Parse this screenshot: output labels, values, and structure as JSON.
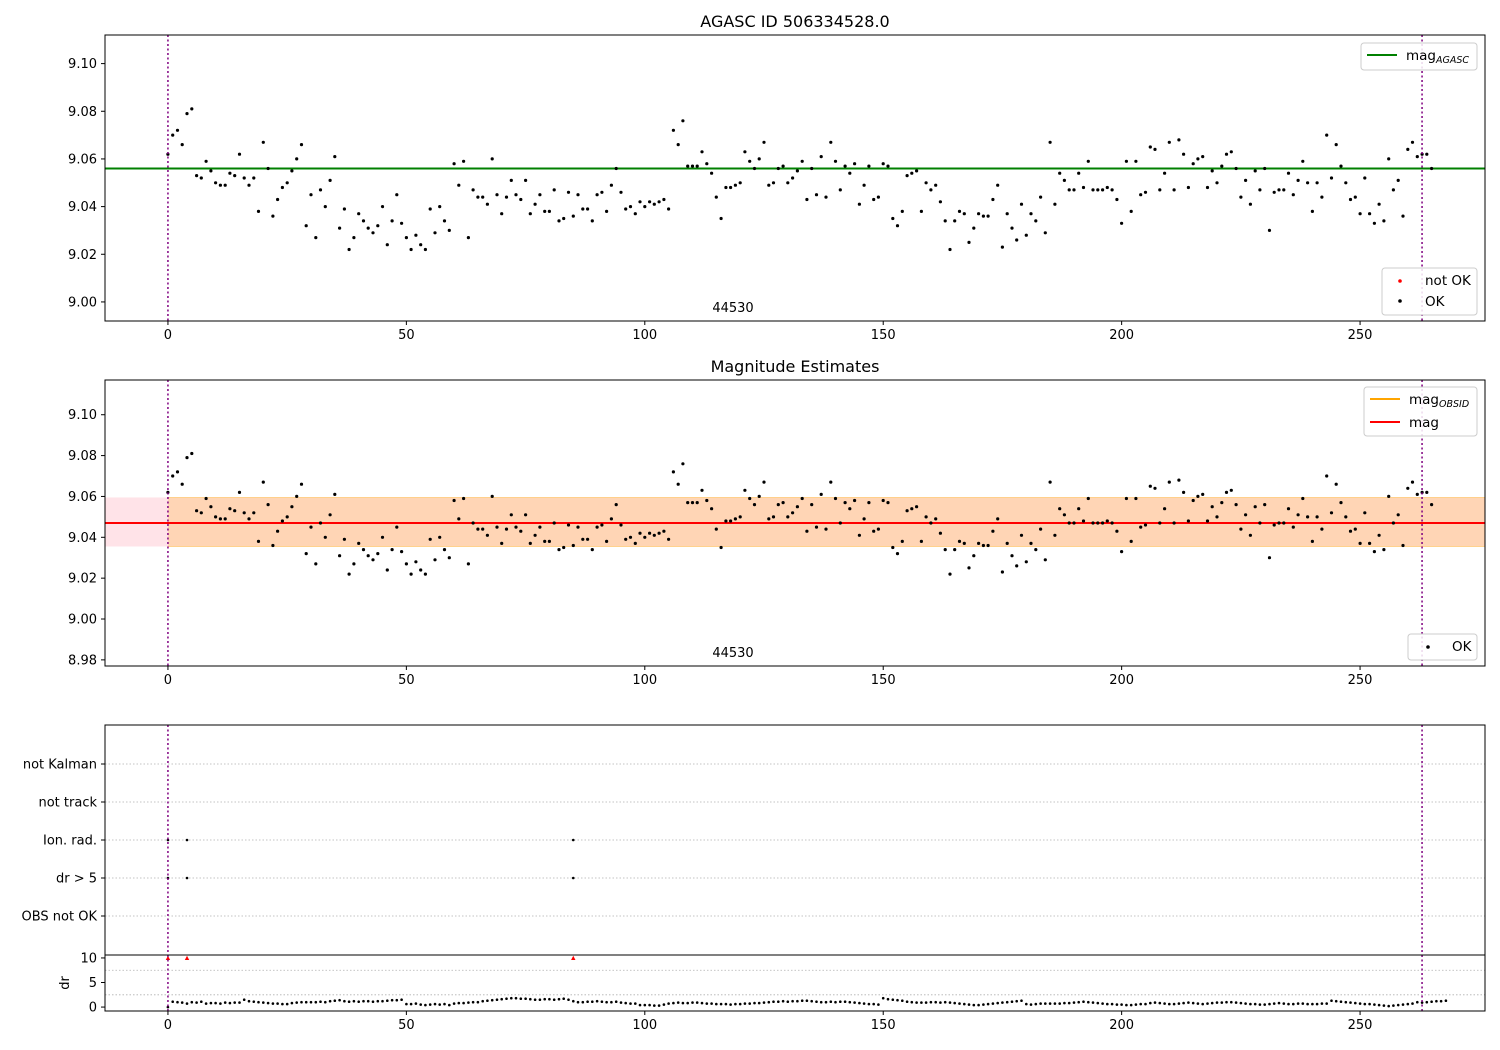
{
  "chart_data": [
    {
      "type": "scatter",
      "title": "AGASC ID 506334528.0",
      "annotation": "44530",
      "xlim": [
        -13.2,
        276.2
      ],
      "ylim": [
        8.992,
        9.112
      ],
      "xticks": [
        "0",
        "50",
        "100",
        "150",
        "200",
        "250",
        "300"
      ],
      "yticks": [
        "9.00",
        "9.02",
        "9.04",
        "9.06",
        "9.08",
        "9.10"
      ],
      "vlines": [
        0,
        263
      ],
      "lines": [
        {
          "name": "mag_AGASC",
          "label": "mag",
          "subscript": "AGASC",
          "y": 9.056,
          "x": [
            -13.2,
            276.2
          ],
          "color": "#008000"
        }
      ],
      "legend_lines": {
        "placement": "upper right"
      },
      "legend_points": {
        "placement": "lower right",
        "entries": [
          {
            "label": "not OK",
            "color": "#ff0000"
          },
          {
            "label": "OK",
            "color": "#000000"
          }
        ]
      },
      "series": [
        {
          "name": "OK",
          "color": "#000000",
          "x_start": 0,
          "x_step": 1,
          "y": [
            9.062,
            9.07,
            9.072,
            9.066,
            9.079,
            9.081,
            9.053,
            9.052,
            9.059,
            9.055,
            9.05,
            9.049,
            9.049,
            9.054,
            9.053,
            9.062,
            9.052,
            9.049,
            9.052,
            9.038,
            9.067,
            9.056,
            9.036,
            9.043,
            9.048,
            9.05,
            9.055,
            9.06,
            9.066,
            9.032,
            9.045,
            9.027,
            9.047,
            9.04,
            9.051,
            9.061,
            9.031,
            9.039,
            9.022,
            9.027,
            9.037,
            9.034,
            9.031,
            9.029,
            9.032,
            9.04,
            9.024,
            9.034,
            9.045,
            9.033,
            9.027,
            9.022,
            9.028,
            9.024,
            9.022,
            9.039,
            9.029,
            9.04,
            9.034,
            9.03,
            9.058,
            9.049,
            9.059,
            9.027,
            9.047,
            9.044,
            9.044,
            9.041,
            9.06,
            9.045,
            9.037,
            9.044,
            9.051,
            9.045,
            9.043,
            9.051,
            9.037,
            9.041,
            9.045,
            9.038,
            9.038,
            9.047,
            9.034,
            9.035,
            9.046,
            9.036,
            9.045,
            9.039,
            9.039,
            9.034,
            9.045,
            9.046,
            9.038,
            9.049,
            9.056,
            9.046,
            9.039,
            9.04,
            9.037,
            9.042,
            9.04,
            9.042,
            9.041,
            9.042,
            9.043,
            9.039,
            9.072,
            9.066,
            9.076,
            9.057,
            9.057,
            9.057,
            9.063,
            9.058,
            9.054,
            9.044,
            9.035,
            9.048,
            9.048,
            9.049,
            9.05,
            9.063,
            9.059,
            9.056,
            9.06,
            9.067,
            9.049,
            9.05,
            9.056,
            9.057,
            9.05,
            9.052,
            9.055,
            9.059,
            9.043,
            9.056,
            9.045,
            9.061,
            9.044,
            9.067,
            9.059,
            9.047,
            9.057,
            9.054,
            9.058,
            9.041,
            9.049,
            9.057,
            9.043,
            9.044,
            9.058,
            9.057,
            9.035,
            9.032,
            9.038,
            9.053,
            9.054,
            9.055,
            9.038,
            9.05,
            9.047,
            9.049,
            9.042,
            9.034,
            9.022,
            9.034,
            9.038,
            9.037,
            9.025,
            9.031,
            9.037,
            9.036,
            9.036,
            9.043,
            9.049,
            9.023,
            9.037,
            9.031,
            9.026,
            9.041,
            9.028,
            9.037,
            9.034,
            9.044,
            9.029,
            9.067,
            9.041,
            9.054,
            9.051,
            9.047,
            9.047,
            9.054,
            9.048,
            9.059,
            9.047,
            9.047,
            9.047,
            9.048,
            9.047,
            9.043,
            9.033,
            9.059,
            9.038,
            9.059,
            9.045,
            9.046,
            9.065,
            9.064,
            9.047,
            9.054,
            9.067,
            9.047,
            9.068,
            9.062,
            9.048,
            9.058,
            9.06,
            9.061,
            9.048,
            9.055,
            9.05,
            9.057,
            9.062,
            9.063,
            9.056,
            9.044,
            9.051,
            9.041,
            9.055,
            9.047,
            9.056,
            9.03,
            9.046,
            9.047,
            9.047,
            9.054,
            9.045,
            9.051,
            9.059,
            9.05,
            9.038,
            9.05,
            9.044,
            9.07,
            9.052,
            9.066,
            9.057,
            9.05,
            9.043,
            9.044,
            9.037,
            9.052,
            9.037,
            9.033,
            9.041,
            9.034,
            9.06,
            9.047,
            9.051,
            9.036,
            9.064,
            9.067,
            9.061,
            9.062,
            9.062,
            9.056
          ]
        }
      ]
    },
    {
      "type": "scatter",
      "title": "Magnitude Estimates",
      "annotation": "44530",
      "xlim": [
        -13.2,
        276.2
      ],
      "ylim": [
        8.977,
        9.117
      ],
      "xticks": [
        "0",
        "50",
        "100",
        "150",
        "200",
        "250",
        "300"
      ],
      "yticks": [
        "8.98",
        "9.00",
        "9.02",
        "9.04",
        "9.06",
        "9.08",
        "9.10"
      ],
      "vlines": [
        0,
        263
      ],
      "lines": [
        {
          "name": "mag_OBSID",
          "label": "mag",
          "subscript": "OBSID",
          "y": 9.047,
          "x": [
            -13.2,
            276.2
          ],
          "color": "#ffa500"
        },
        {
          "name": "mag",
          "label": "mag",
          "y": 9.047,
          "x": [
            -13.2,
            276.2
          ],
          "color": "#ff0000"
        }
      ],
      "bands": [
        {
          "name": "mag_OBSID band",
          "y": [
            9.0355,
            9.0595
          ],
          "x": [
            -13.2,
            276.2
          ],
          "color": "#ffa500"
        },
        {
          "name": "mag band",
          "y": [
            9.0355,
            9.0595
          ],
          "x": [
            -13.2,
            276.2
          ],
          "color": "#ffc0cb"
        }
      ],
      "legend_lines": {
        "placement": "upper right"
      },
      "legend_points": {
        "placement": "lower right",
        "entries": [
          {
            "label": "OK",
            "color": "#000000"
          }
        ]
      },
      "series": [
        {
          "name": "OK",
          "color": "#000000",
          "same_as_panel": 0
        }
      ]
    },
    {
      "type": "scatter",
      "title": "",
      "xlim": [
        -13.2,
        276.2
      ],
      "xticks": [
        "0",
        "50",
        "100",
        "150",
        "200",
        "250",
        "300"
      ],
      "vlines": [
        0,
        263
      ],
      "categories": [
        "OBS not OK",
        "dr > 5",
        "Ion. rad.",
        "not track",
        "not Kalman"
      ],
      "flags": [
        {
          "category": "dr > 5",
          "x": [
            0,
            4,
            85
          ]
        },
        {
          "category": "Ion. rad.",
          "x": [
            0,
            4,
            85
          ]
        }
      ]
    },
    {
      "type": "scatter",
      "title": "",
      "ylabel": "dr",
      "xlim": [
        -13.2,
        276.2
      ],
      "ylim": [
        -0.8,
        10.6
      ],
      "yticks": [
        "0",
        "5",
        "10"
      ],
      "xticks": [
        "0",
        "50",
        "100",
        "150",
        "200",
        "250",
        "300"
      ],
      "vlines": [
        0,
        263
      ],
      "series": [
        {
          "name": "dr",
          "color": "#000000",
          "x_start": 0,
          "x_step": 1,
          "y": [
            0.0,
            1.1,
            1.0,
            0.9,
            0.7,
            1.0,
            0.9,
            1.1,
            0.7,
            0.8,
            0.8,
            0.7,
            0.9,
            0.8,
            0.9,
            0.9,
            1.5,
            1.2,
            1.1,
            1.0,
            0.9,
            0.8,
            0.7,
            0.7,
            0.6,
            0.6,
            0.8,
            0.9,
            1.0,
            1.0,
            1.0,
            1.0,
            1.1,
            1.0,
            1.2,
            1.3,
            1.4,
            1.2,
            1.1,
            1.2,
            1.1,
            1.2,
            1.2,
            1.1,
            1.2,
            1.2,
            1.3,
            1.4,
            1.4,
            1.5,
            0.6,
            0.6,
            0.7,
            0.5,
            0.4,
            0.5,
            0.6,
            0.5,
            0.6,
            0.4,
            0.7,
            0.8,
            0.8,
            0.9,
            1.0,
            1.0,
            1.2,
            1.3,
            1.4,
            1.5,
            1.6,
            1.7,
            1.8,
            1.8,
            1.7,
            1.7,
            1.6,
            1.5,
            1.5,
            1.6,
            1.6,
            1.5,
            1.6,
            1.7,
            1.5,
            1.2,
            1.0,
            1.0,
            1.1,
            1.1,
            1.2,
            1.1,
            1.0,
            1.0,
            1.1,
            0.9,
            0.8,
            0.7,
            0.7,
            0.4,
            0.4,
            0.4,
            0.3,
            0.3,
            0.5,
            0.7,
            0.8,
            0.9,
            0.8,
            0.8,
            0.9,
            0.9,
            0.8,
            0.7,
            0.7,
            0.6,
            0.6,
            0.6,
            0.5,
            0.6,
            0.6,
            0.7,
            0.7,
            0.8,
            0.8,
            0.9,
            1.0,
            1.1,
            1.1,
            1.2,
            1.1,
            1.2,
            1.2,
            1.3,
            1.3,
            1.2,
            1.1,
            1.0,
            1.0,
            1.1,
            1.0,
            1.1,
            1.1,
            1.0,
            0.9,
            0.8,
            0.7,
            0.6,
            0.6,
            0.5,
            1.8,
            1.6,
            1.5,
            1.4,
            1.3,
            1.1,
            1.0,
            0.9,
            0.9,
            0.9,
            1.0,
            1.0,
            0.9,
            1.0,
            0.9,
            0.8,
            0.7,
            0.6,
            0.5,
            0.4,
            0.4,
            0.5,
            0.6,
            0.7,
            0.8,
            0.9,
            1.0,
            1.1,
            1.2,
            1.3,
            0.6,
            0.5,
            0.6,
            0.7,
            0.7,
            0.7,
            0.7,
            0.7,
            0.8,
            0.8,
            0.9,
            1.0,
            1.1,
            1.0,
            0.9,
            0.8,
            0.7,
            0.6,
            0.6,
            0.5,
            0.5,
            0.4,
            0.4,
            0.5,
            0.6,
            0.6,
            0.8,
            0.9,
            0.8,
            0.7,
            0.6,
            0.6,
            0.7,
            0.8,
            0.9,
            0.8,
            0.7,
            0.6,
            0.7,
            0.8,
            0.9,
            0.9,
            1.0,
            1.0,
            0.9,
            0.8,
            0.7,
            0.6,
            0.6,
            0.5,
            0.5,
            0.6,
            0.7,
            0.8,
            0.7,
            0.6,
            0.6,
            0.7,
            0.7,
            0.6,
            0.6,
            0.6,
            0.7,
            0.7,
            1.3,
            1.2,
            1.1,
            1.0,
            0.9,
            0.8,
            0.7,
            0.6,
            0.6,
            0.5,
            0.4,
            0.3,
            0.2,
            0.3,
            0.4,
            0.5,
            0.6,
            0.7,
            1.0,
            0.9,
            1.0,
            1.1,
            1.2,
            1.2,
            1.3
          ]
        },
        {
          "name": "dr flagged",
          "color": "#ff0000",
          "marker": "triangle",
          "x": [
            0,
            4,
            85
          ],
          "y": [
            10,
            10,
            10
          ]
        }
      ]
    }
  ]
}
